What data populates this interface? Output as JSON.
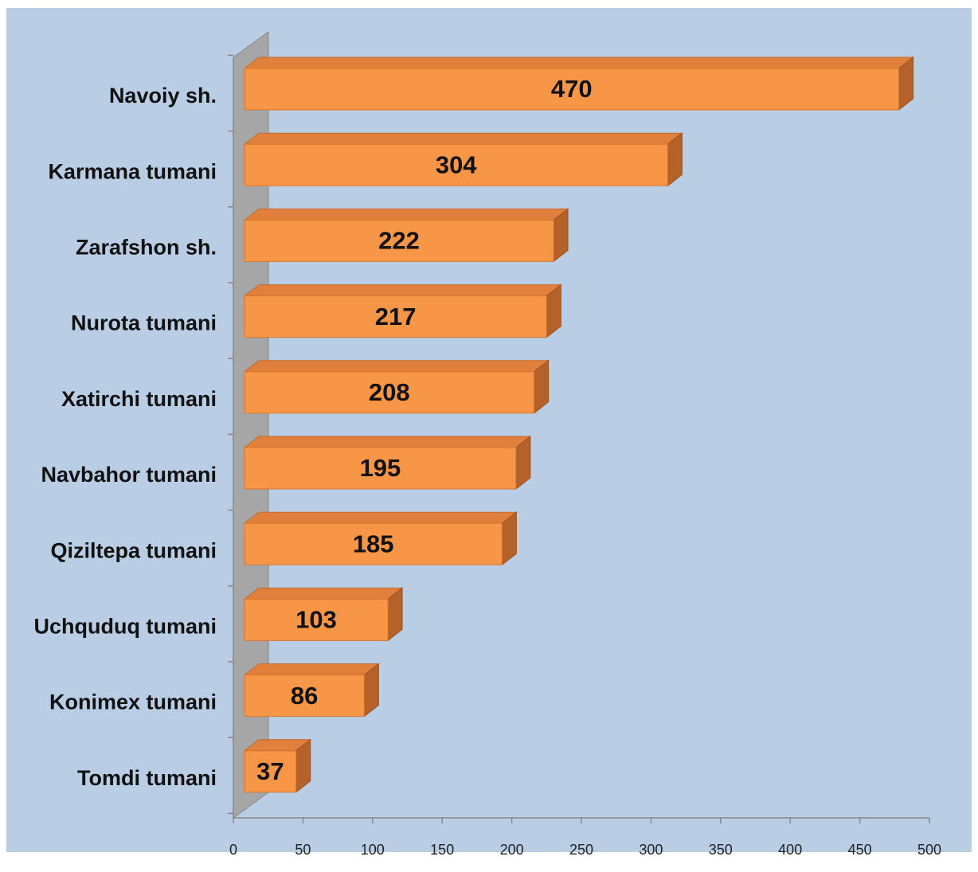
{
  "chart_data": {
    "type": "bar3d_horizontal",
    "categories": [
      "Navoiy sh.",
      "Karmana tumani",
      "Zarafshon sh.",
      "Nurota tumani",
      "Xatirchi tumani",
      "Navbahor tumani",
      "Qiziltepa tumani",
      "Uchquduq tumani",
      "Konimex tumani",
      "Tomdi tumani"
    ],
    "values": [
      470,
      304,
      222,
      217,
      208,
      195,
      185,
      103,
      86,
      37
    ],
    "color": "#f79646",
    "xlim": [
      0,
      500
    ],
    "xticks": [
      0,
      50,
      100,
      150,
      200,
      250,
      300,
      350,
      400,
      450,
      500
    ]
  }
}
